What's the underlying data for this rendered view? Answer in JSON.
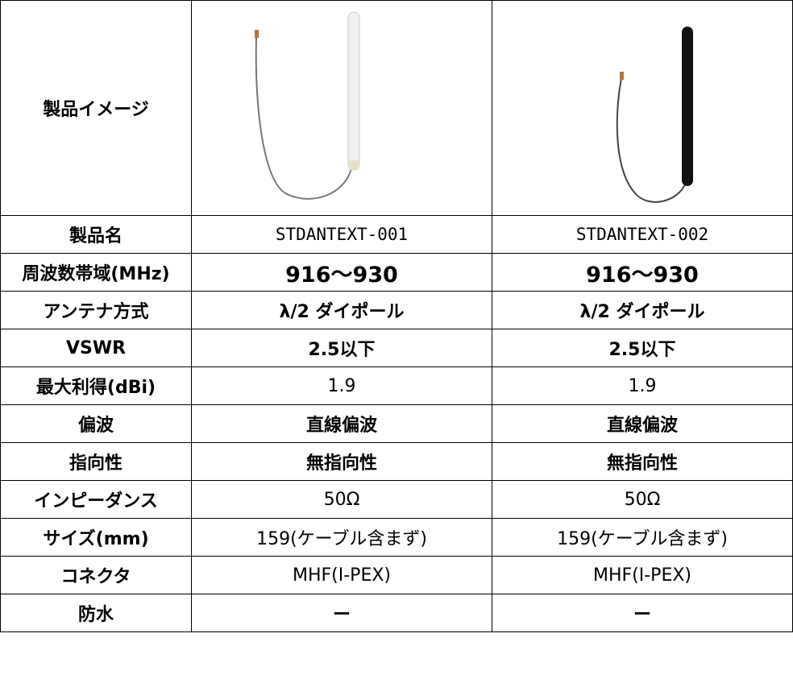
{
  "table": {
    "image_label": "製品イメージ",
    "rows": [
      [
        "製品名",
        "STDANTEXT-001",
        "STDANTEXT-002"
      ],
      [
        "周波数帯域(MHz)",
        "916〜930",
        "916〜930"
      ],
      [
        "アンテナ方式",
        "λ/2 ダイポール",
        "λ/2 ダイポール"
      ],
      [
        "VSWR",
        "2.5以下",
        "2.5以下"
      ],
      [
        "最大利得(dBi)",
        "1.9",
        "1.9"
      ],
      [
        "偏波",
        "直線偏波",
        "直線偏波"
      ],
      [
        "指向性",
        "無指向性",
        "無指向性"
      ],
      [
        "インピーダンス",
        "50Ω",
        "50Ω"
      ],
      [
        "サイズ(mm)",
        "159(ケーブル含まず)",
        "159(ケーブル含まず)"
      ],
      [
        "コネクタ",
        "MHF(I-PEX)",
        "MHF(I-PEX)"
      ],
      [
        "防水",
        "ー",
        "ー"
      ]
    ]
  }
}
